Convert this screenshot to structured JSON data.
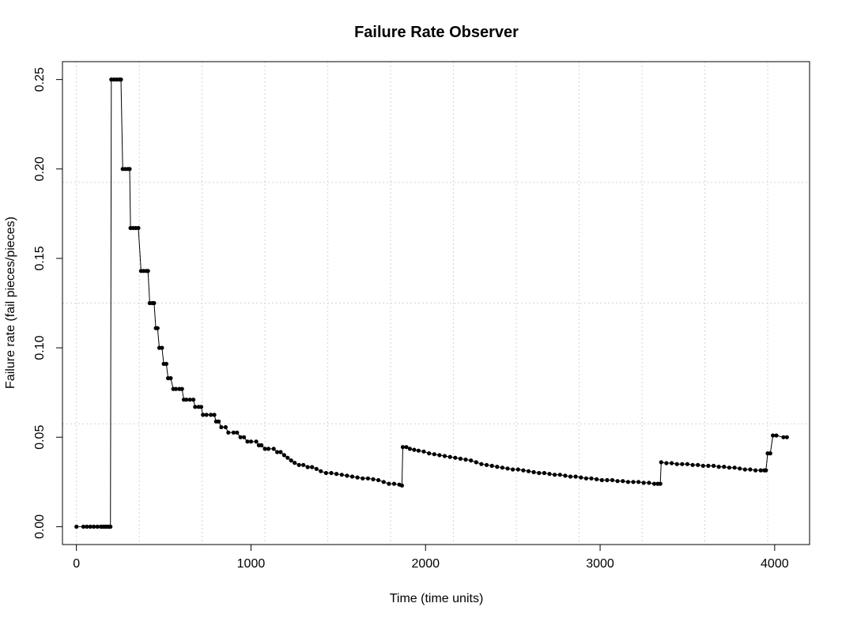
{
  "chart_data": {
    "type": "line",
    "title": "Failure Rate Observer",
    "xlabel": "Time (time units)",
    "ylabel": "Failure rate (fail pieces/pieces)",
    "xlim": [
      -80,
      4200
    ],
    "ylim": [
      -0.01,
      0.26
    ],
    "xticks": [
      0,
      1000,
      2000,
      3000,
      4000
    ],
    "xtick_labels": [
      "0",
      "1000",
      "2000",
      "3000",
      "4000"
    ],
    "yticks": [
      0.0,
      0.05,
      0.1,
      0.15,
      0.2,
      0.25
    ],
    "ytick_labels": [
      "0.00",
      "0.05",
      "0.10",
      "0.15",
      "0.20",
      "0.25"
    ],
    "grid": true,
    "xgrid": [
      0,
      360,
      720,
      1080,
      1440,
      1800,
      2160,
      2520,
      2880,
      3240,
      3600,
      3960
    ],
    "ygrid": [
      0.0575,
      0.125,
      0.1925
    ],
    "series": [
      {
        "color": "#000000",
        "x": [
          0,
          40,
          60,
          80,
          100,
          120,
          140,
          150,
          160,
          170,
          180,
          190,
          195,
          200,
          215,
          230,
          245,
          255,
          265,
          280,
          295,
          305,
          310,
          325,
          340,
          355,
          370,
          385,
          400,
          410,
          420,
          435,
          445,
          455,
          465,
          475,
          490,
          500,
          515,
          525,
          540,
          555,
          570,
          590,
          605,
          615,
          630,
          650,
          670,
          680,
          700,
          715,
          725,
          745,
          770,
          790,
          800,
          815,
          830,
          855,
          870,
          900,
          920,
          940,
          960,
          980,
          1000,
          1030,
          1045,
          1060,
          1080,
          1100,
          1130,
          1150,
          1170,
          1190,
          1210,
          1230,
          1250,
          1275,
          1300,
          1325,
          1350,
          1375,
          1400,
          1430,
          1460,
          1490,
          1520,
          1550,
          1580,
          1610,
          1640,
          1670,
          1700,
          1730,
          1760,
          1790,
          1820,
          1850,
          1865,
          1870,
          1890,
          1910,
          1935,
          1960,
          1990,
          2020,
          2050,
          2080,
          2110,
          2140,
          2170,
          2200,
          2230,
          2260,
          2290,
          2320,
          2350,
          2380,
          2410,
          2440,
          2470,
          2500,
          2530,
          2560,
          2590,
          2620,
          2650,
          2680,
          2710,
          2740,
          2770,
          2800,
          2830,
          2860,
          2890,
          2920,
          2950,
          2980,
          3010,
          3040,
          3070,
          3100,
          3130,
          3160,
          3190,
          3220,
          3250,
          3280,
          3310,
          3330,
          3345,
          3350,
          3380,
          3410,
          3440,
          3470,
          3500,
          3530,
          3560,
          3590,
          3620,
          3650,
          3680,
          3710,
          3740,
          3770,
          3800,
          3830,
          3860,
          3890,
          3920,
          3940,
          3950,
          3960,
          3975,
          3990,
          4010,
          4050,
          4070
        ],
        "y": [
          0.0,
          0.0,
          0.0,
          0.0,
          0.0,
          0.0,
          0.0,
          0.0,
          0.0,
          0.0,
          0.0,
          0.0,
          0.0,
          0.25,
          0.25,
          0.25,
          0.25,
          0.25,
          0.2,
          0.2,
          0.2,
          0.2,
          0.167,
          0.167,
          0.167,
          0.167,
          0.143,
          0.143,
          0.143,
          0.143,
          0.125,
          0.125,
          0.125,
          0.111,
          0.111,
          0.1,
          0.1,
          0.091,
          0.091,
          0.083,
          0.083,
          0.077,
          0.077,
          0.077,
          0.077,
          0.071,
          0.071,
          0.071,
          0.071,
          0.067,
          0.067,
          0.067,
          0.0625,
          0.0625,
          0.0625,
          0.0625,
          0.0588,
          0.0588,
          0.0556,
          0.0556,
          0.0526,
          0.0526,
          0.0526,
          0.05,
          0.05,
          0.0476,
          0.0476,
          0.0476,
          0.0455,
          0.0455,
          0.0435,
          0.0435,
          0.0435,
          0.0417,
          0.0417,
          0.04,
          0.0385,
          0.037,
          0.0357,
          0.0345,
          0.0345,
          0.0333,
          0.0333,
          0.0323,
          0.031,
          0.03,
          0.03,
          0.0295,
          0.029,
          0.0285,
          0.028,
          0.0275,
          0.027,
          0.027,
          0.0265,
          0.026,
          0.025,
          0.024,
          0.024,
          0.0235,
          0.023,
          0.0445,
          0.0445,
          0.0435,
          0.043,
          0.0425,
          0.042,
          0.041,
          0.0405,
          0.04,
          0.0395,
          0.039,
          0.0385,
          0.038,
          0.0375,
          0.037,
          0.036,
          0.035,
          0.0345,
          0.034,
          0.0335,
          0.033,
          0.0325,
          0.032,
          0.032,
          0.0315,
          0.031,
          0.0305,
          0.03,
          0.03,
          0.0295,
          0.029,
          0.029,
          0.0285,
          0.028,
          0.028,
          0.0275,
          0.027,
          0.027,
          0.0265,
          0.026,
          0.026,
          0.026,
          0.0255,
          0.0255,
          0.025,
          0.025,
          0.025,
          0.0245,
          0.0245,
          0.024,
          0.024,
          0.024,
          0.036,
          0.0355,
          0.0355,
          0.035,
          0.035,
          0.035,
          0.0345,
          0.0345,
          0.034,
          0.034,
          0.034,
          0.0335,
          0.0335,
          0.033,
          0.033,
          0.0325,
          0.032,
          0.032,
          0.0315,
          0.0315,
          0.0315,
          0.0315,
          0.041,
          0.041,
          0.051,
          0.051,
          0.05,
          0.05
        ]
      }
    ]
  }
}
